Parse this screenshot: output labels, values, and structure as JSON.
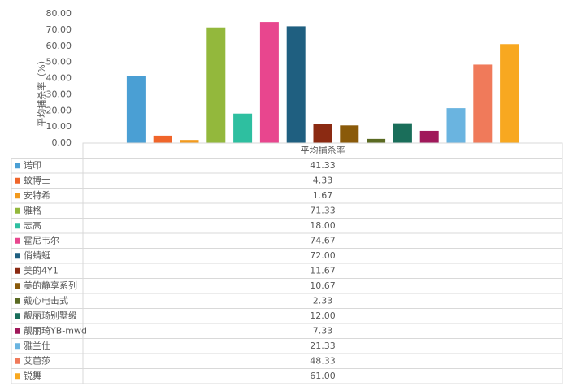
{
  "chart_data": {
    "type": "bar",
    "y_label": "平均捕杀率（%）",
    "categories": [
      "平均捕杀率"
    ],
    "ylim": [
      0,
      80
    ],
    "yticks": [
      {
        "value": 0,
        "label": "0.00"
      },
      {
        "value": 10,
        "label": "10.00"
      },
      {
        "value": 20,
        "label": "20.00"
      },
      {
        "value": 30,
        "label": "30.00"
      },
      {
        "value": 40,
        "label": "40.00"
      },
      {
        "value": 50,
        "label": "50.00"
      },
      {
        "value": 60,
        "label": "60.00"
      },
      {
        "value": 70,
        "label": "70.00"
      },
      {
        "value": 80,
        "label": "80.00"
      }
    ],
    "series": [
      {
        "name": "诺印",
        "color": "#4a9fd4",
        "values": [
          41.33
        ],
        "value_labels": [
          "41.33"
        ]
      },
      {
        "name": "蚊博士",
        "color": "#f0652a",
        "values": [
          4.33
        ],
        "value_labels": [
          "4.33"
        ]
      },
      {
        "name": "安特希",
        "color": "#f29a1e",
        "values": [
          1.67
        ],
        "value_labels": [
          "1.67"
        ]
      },
      {
        "name": "雅格",
        "color": "#93b83c",
        "values": [
          71.33
        ],
        "value_labels": [
          "71.33"
        ]
      },
      {
        "name": "志高",
        "color": "#2ebfa0",
        "values": [
          18.0
        ],
        "value_labels": [
          "18.00"
        ]
      },
      {
        "name": "霍尼韦尔",
        "color": "#e8468e",
        "values": [
          74.67
        ],
        "value_labels": [
          "74.67"
        ]
      },
      {
        "name": "俏蜻蜓",
        "color": "#1f5f80",
        "values": [
          72.0
        ],
        "value_labels": [
          "72.00"
        ]
      },
      {
        "name": "美的4Y1",
        "color": "#8b2a12",
        "values": [
          11.67
        ],
        "value_labels": [
          "11.67"
        ]
      },
      {
        "name": "美的静享系列",
        "color": "#8a5a0a",
        "values": [
          10.67
        ],
        "value_labels": [
          "10.67"
        ]
      },
      {
        "name": "戴心电击式",
        "color": "#5a6a22",
        "values": [
          2.33
        ],
        "value_labels": [
          "2.33"
        ]
      },
      {
        "name": "靓丽琦别墅级",
        "color": "#1a6e5a",
        "values": [
          12.0
        ],
        "value_labels": [
          "12.00"
        ]
      },
      {
        "name": "靓丽琦YB-mwd",
        "color": "#a0185a",
        "values": [
          7.33
        ],
        "value_labels": [
          "7.33"
        ]
      },
      {
        "name": "雅兰仕",
        "color": "#6ab4e0",
        "values": [
          21.33
        ],
        "value_labels": [
          "21.33"
        ]
      },
      {
        "name": "艾芭莎",
        "color": "#f07a5a",
        "values": [
          48.33
        ],
        "value_labels": [
          "48.33"
        ]
      },
      {
        "name": "锐舞",
        "color": "#f8a820",
        "values": [
          61.0
        ],
        "value_labels": [
          "61.00"
        ]
      }
    ]
  }
}
